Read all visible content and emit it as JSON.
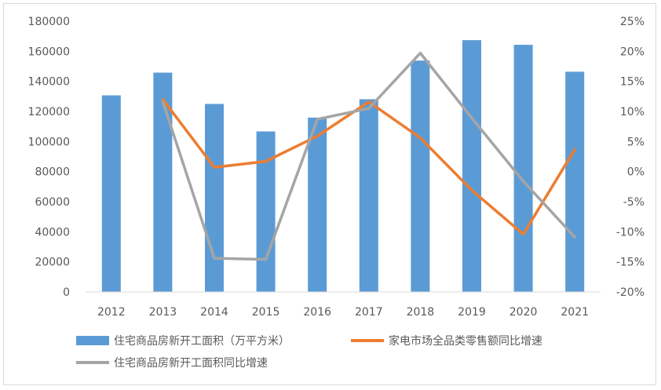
{
  "chart_data": {
    "type": "bar+line",
    "title": "",
    "categories": [
      "2012",
      "2013",
      "2014",
      "2015",
      "2016",
      "2017",
      "2018",
      "2019",
      "2020",
      "2021"
    ],
    "y_left": {
      "min": 0,
      "max": 180000,
      "step": 20000,
      "ticks": [
        "0",
        "20000",
        "40000",
        "60000",
        "80000",
        "100000",
        "120000",
        "140000",
        "160000",
        "180000"
      ]
    },
    "y_right": {
      "min": -20,
      "max": 25,
      "step": 5,
      "ticks": [
        "-20%",
        "-15%",
        "-10%",
        "-5%",
        "0%",
        "5%",
        "10%",
        "15%",
        "20%",
        "25%"
      ]
    },
    "series": [
      {
        "name": "住宅商品房新开工面积（万平方米）",
        "kind": "bar",
        "axis": "left",
        "color": "#5b9bd5",
        "values": [
          130700,
          145800,
          125000,
          106700,
          115900,
          128100,
          153800,
          167400,
          164300,
          146400
        ]
      },
      {
        "name": "家电市场全品类零售额同比增速",
        "kind": "line",
        "axis": "right",
        "color": "#ed7d31",
        "values": [
          null,
          12.0,
          0.7,
          1.7,
          5.9,
          11.6,
          5.6,
          -3.1,
          -10.4,
          3.7
        ]
      },
      {
        "name": "住宅商品房新开工面积同比增速",
        "kind": "line",
        "axis": "right",
        "color": "#a5a5a5",
        "values": [
          null,
          11.6,
          -14.4,
          -14.6,
          8.7,
          10.5,
          19.7,
          8.9,
          -1.6,
          -10.9
        ]
      }
    ],
    "legend_position": "bottom",
    "grid": false
  }
}
